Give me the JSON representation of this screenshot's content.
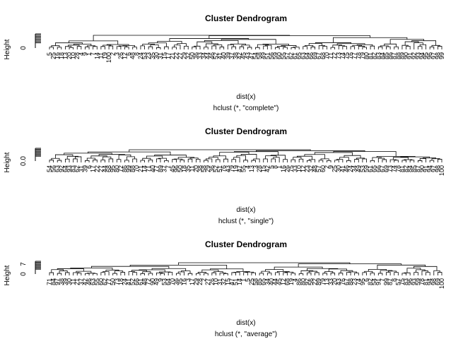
{
  "chart_data": [
    {
      "type": "dendrogram",
      "title": "Cluster Dendrogram",
      "xlabel": "dist(x)",
      "sub": "hclust (*, \"complete\")",
      "ylabel": "Height",
      "y_tick_labels": [
        "0"
      ],
      "leaf_labels": [
        "5",
        "25",
        "16",
        "18",
        "13",
        "20",
        "10",
        "28",
        "4",
        "9",
        "1",
        "7",
        "14",
        "11",
        "19",
        "100",
        "2",
        "3",
        "26",
        "12",
        "6",
        "48",
        "8",
        "24",
        "53",
        "23",
        "35",
        "30",
        "31",
        "15",
        "17",
        "21",
        "22",
        "27",
        "29",
        "32",
        "50",
        "36",
        "33",
        "34",
        "44",
        "46",
        "52",
        "41",
        "40",
        "39",
        "37",
        "38",
        "42",
        "45",
        "43",
        "47",
        "54",
        "58",
        "49",
        "51",
        "56",
        "59",
        "60",
        "55",
        "57",
        "62",
        "61",
        "65",
        "63",
        "64",
        "66",
        "69",
        "67",
        "68",
        "70",
        "71",
        "72",
        "73",
        "74",
        "75",
        "76",
        "77",
        "78",
        "79",
        "80",
        "81",
        "82",
        "83",
        "84",
        "85",
        "86",
        "87",
        "88",
        "89",
        "90",
        "91",
        "92",
        "93",
        "94",
        "95",
        "96",
        "97",
        "98",
        "99"
      ]
    },
    {
      "type": "dendrogram",
      "title": "Cluster Dendrogram",
      "xlabel": "dist(x)",
      "sub": "hclust (*, \"single\")",
      "ylabel": "Height",
      "y_tick_labels": [
        "0.0"
      ],
      "leaf_labels": [
        "54",
        "56",
        "63",
        "92",
        "64",
        "93",
        "83",
        "62",
        "31",
        "39",
        "6",
        "17",
        "22",
        "27",
        "44",
        "68",
        "95",
        "80",
        "72",
        "86",
        "99",
        "88",
        "70",
        "21",
        "14",
        "71",
        "40",
        "77",
        "89",
        "37",
        "7",
        "45",
        "96",
        "50",
        "18",
        "35",
        "11",
        "20",
        "38",
        "58",
        "29",
        "36",
        "52",
        "51",
        "76",
        "43",
        "79",
        "19",
        "47",
        "55",
        "4",
        "13",
        "3",
        "28",
        "15",
        "42",
        "5",
        "8",
        "1",
        "16",
        "26",
        "75",
        "33",
        "10",
        "12",
        "23",
        "32",
        "48",
        "57",
        "60",
        "2",
        "9",
        "25",
        "30",
        "41",
        "46",
        "24",
        "34",
        "49",
        "53",
        "59",
        "61",
        "65",
        "66",
        "67",
        "69",
        "73",
        "74",
        "78",
        "81",
        "82",
        "84",
        "85",
        "87",
        "90",
        "91",
        "94",
        "97",
        "98",
        "100"
      ]
    },
    {
      "type": "dendrogram",
      "title": "Cluster Dendrogram",
      "xlabel": "dist(x)",
      "sub": "hclust (*, \"average\")",
      "ylabel": "Height",
      "y_tick_labels": [
        "0",
        "7"
      ],
      "leaf_labels": [
        "71",
        "84",
        "97",
        "38",
        "39",
        "30",
        "11",
        "21",
        "37",
        "42",
        "46",
        "63",
        "55",
        "60",
        "62",
        "77",
        "50",
        "73",
        "18",
        "24",
        "41",
        "52",
        "66",
        "61",
        "48",
        "72",
        "90",
        "49",
        "9",
        "53",
        "64",
        "70",
        "36",
        "35",
        "16",
        "3",
        "17",
        "29",
        "28",
        "2",
        "27",
        "26",
        "10",
        "31",
        "32",
        "15",
        "47",
        "51",
        "14",
        "1",
        "5",
        "25",
        "58",
        "85",
        "65",
        "34",
        "40",
        "44",
        "45",
        "12",
        "68",
        "19",
        "4",
        "86",
        "80",
        "92",
        "56",
        "22",
        "89",
        "79",
        "13",
        "33",
        "20",
        "43",
        "76",
        "67",
        "88",
        "23",
        "74",
        "95",
        "6",
        "82",
        "54",
        "91",
        "7",
        "99",
        "87",
        "8",
        "57",
        "75",
        "83",
        "96",
        "93",
        "59",
        "78",
        "81",
        "94",
        "98",
        "69",
        "100"
      ]
    }
  ]
}
